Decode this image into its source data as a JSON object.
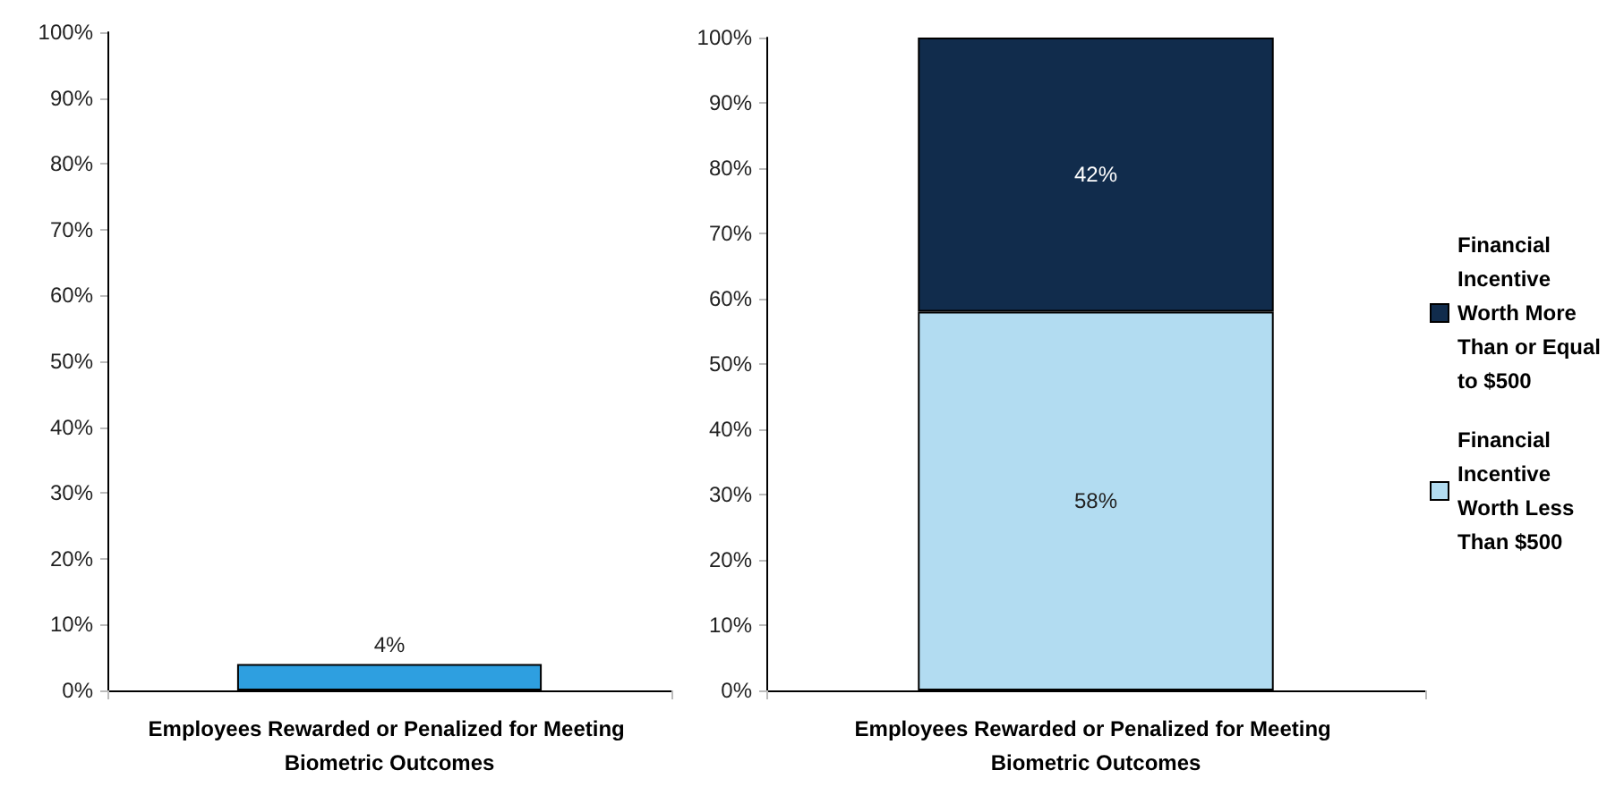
{
  "chart_data": [
    {
      "type": "bar",
      "categories": [
        "Employees Rewarded or Penalized for Meeting Biometric Outcomes"
      ],
      "values": [
        4
      ],
      "color": "#2e9fe0",
      "value_labels": [
        "4%"
      ],
      "ylim": [
        0,
        100
      ],
      "yticks": [
        {
          "value": 0,
          "label": "0%"
        },
        {
          "value": 10,
          "label": "10%"
        },
        {
          "value": 20,
          "label": "20%"
        },
        {
          "value": 30,
          "label": "30%"
        },
        {
          "value": 40,
          "label": "40%"
        },
        {
          "value": 50,
          "label": "50%"
        },
        {
          "value": 60,
          "label": "60%"
        },
        {
          "value": 70,
          "label": "70%"
        },
        {
          "value": 80,
          "label": "80%"
        },
        {
          "value": 90,
          "label": "90%"
        },
        {
          "value": 100,
          "label": "100%"
        }
      ],
      "grid": false,
      "legend": false
    },
    {
      "type": "bar",
      "stacked": true,
      "categories": [
        "Employees Rewarded or Penalized for Meeting Biometric Outcomes"
      ],
      "series": [
        {
          "name": "Financial Incentive Worth Less Than $500",
          "color": "#b2dcf1",
          "values": [
            58
          ],
          "value_labels": [
            "58%"
          ]
        },
        {
          "name": "Financial Incentive Worth More Than or Equal to $500",
          "color": "#112c4c",
          "values": [
            42
          ],
          "value_labels": [
            "42%"
          ]
        }
      ],
      "ylim": [
        0,
        100
      ],
      "yticks": [
        {
          "value": 0,
          "label": "0%"
        },
        {
          "value": 10,
          "label": "10%"
        },
        {
          "value": 20,
          "label": "20%"
        },
        {
          "value": 30,
          "label": "30%"
        },
        {
          "value": 40,
          "label": "40%"
        },
        {
          "value": 50,
          "label": "50%"
        },
        {
          "value": 60,
          "label": "60%"
        },
        {
          "value": 70,
          "label": "70%"
        },
        {
          "value": 80,
          "label": "80%"
        },
        {
          "value": 90,
          "label": "90%"
        },
        {
          "value": 100,
          "label": "100%"
        }
      ],
      "grid": false,
      "legend": "right"
    }
  ]
}
